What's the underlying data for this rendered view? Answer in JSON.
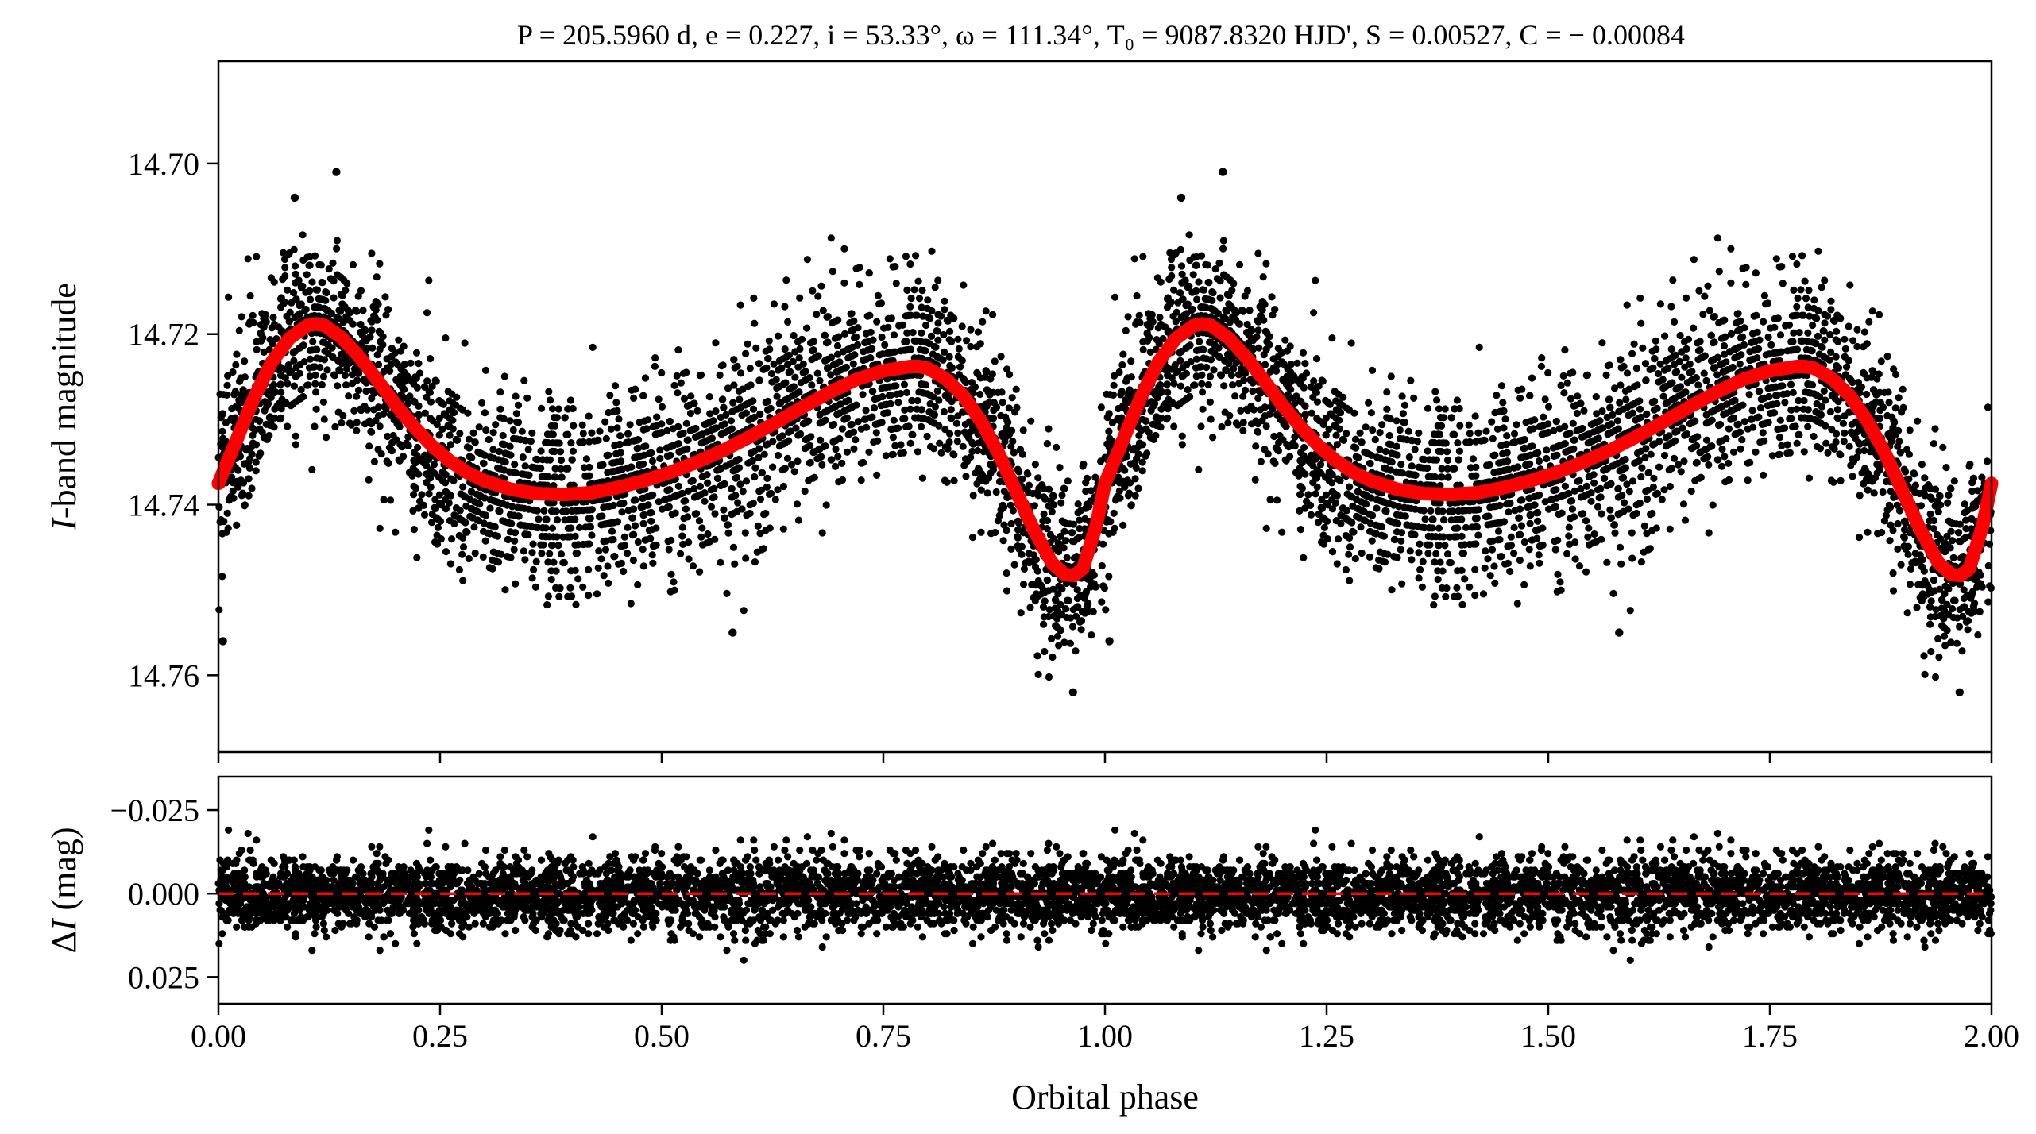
{
  "figure": {
    "title": "P = 205.5960 d, e = 0.227, i = 53.33°, ω = 111.34°, T₀ = 9087.8320 HJD', S = 0.00527, C = − 0.00084"
  },
  "chart_data": [
    {
      "type": "scatter",
      "panel": "top",
      "title": "P = 205.5960 d, e = 0.227, i = 53.33°, ω = 111.34°, T₀ = 9087.8320 HJD', S = 0.00527, C = − 0.00084",
      "xlabel": "",
      "ylabel": "I-band magnitude",
      "xlim": [
        0.0,
        2.0
      ],
      "ylim": [
        14.769,
        14.688
      ],
      "y_inverted": true,
      "yticks": [
        14.7,
        14.72,
        14.74,
        14.76
      ],
      "ytick_labels": [
        "14.70",
        "14.72",
        "14.74",
        "14.76"
      ],
      "grid": false,
      "colors": {
        "points": "#000000",
        "model": "#ff0000"
      },
      "series": [
        {
          "kind": "observations",
          "style": "black filled points",
          "phase_range": [
            0.0,
            1.0
          ],
          "repeated_over_two_cycles": true,
          "scatter_std_mag": 0.0055,
          "outliers": [
            {
              "x": 0.086,
              "y": 14.704
            },
            {
              "x": 0.133,
              "y": 14.701
            },
            {
              "x": 0.964,
              "y": 14.762
            },
            {
              "x": 0.58,
              "y": 14.755
            },
            {
              "x": 0.005,
              "y": 14.756
            }
          ]
        },
        {
          "kind": "model",
          "style": "thick red line",
          "x": [
            0.0,
            0.02,
            0.04,
            0.06,
            0.08,
            0.1,
            0.11,
            0.12,
            0.14,
            0.16,
            0.18,
            0.2,
            0.22,
            0.24,
            0.26,
            0.28,
            0.3,
            0.33,
            0.36,
            0.39,
            0.42,
            0.45,
            0.48,
            0.51,
            0.54,
            0.57,
            0.6,
            0.63,
            0.66,
            0.69,
            0.72,
            0.75,
            0.78,
            0.79,
            0.8,
            0.82,
            0.84,
            0.86,
            0.88,
            0.9,
            0.92,
            0.94,
            0.955,
            0.965,
            0.975,
            0.99,
            1.0
          ],
          "y": [
            14.7375,
            14.7325,
            14.7275,
            14.7233,
            14.7205,
            14.719,
            14.7188,
            14.719,
            14.7205,
            14.7228,
            14.7255,
            14.7283,
            14.7308,
            14.733,
            14.7348,
            14.7362,
            14.7372,
            14.7382,
            14.7387,
            14.7388,
            14.7386,
            14.738,
            14.7372,
            14.7362,
            14.735,
            14.7336,
            14.732,
            14.7303,
            14.7285,
            14.7268,
            14.7253,
            14.7243,
            14.7238,
            14.7238,
            14.724,
            14.7252,
            14.7272,
            14.7302,
            14.734,
            14.7385,
            14.743,
            14.7468,
            14.7482,
            14.7483,
            14.7475,
            14.7425,
            14.7375
          ]
        }
      ]
    },
    {
      "type": "scatter",
      "panel": "bottom",
      "xlabel": "Orbital phase",
      "ylabel": "ΔI (mag)",
      "xlim": [
        0.0,
        2.0
      ],
      "ylim": [
        0.033,
        -0.035
      ],
      "y_inverted": true,
      "xticks": [
        0.0,
        0.25,
        0.5,
        0.75,
        1.0,
        1.25,
        1.5,
        1.75,
        2.0
      ],
      "xtick_labels": [
        "0.00",
        "0.25",
        "0.50",
        "0.75",
        "1.00",
        "1.25",
        "1.50",
        "1.75",
        "2.00"
      ],
      "yticks": [
        -0.025,
        0.0,
        0.025
      ],
      "ytick_labels": [
        "−0.025",
        "0.000",
        "0.025"
      ],
      "grid": false,
      "colors": {
        "points": "#000000",
        "zero_line": "#ff0000"
      },
      "series": [
        {
          "kind": "residuals",
          "style": "black filled points",
          "scatter_std_mag": 0.0055
        },
        {
          "kind": "zero_line",
          "style": "red dashed line",
          "y": 0.0
        }
      ]
    }
  ]
}
